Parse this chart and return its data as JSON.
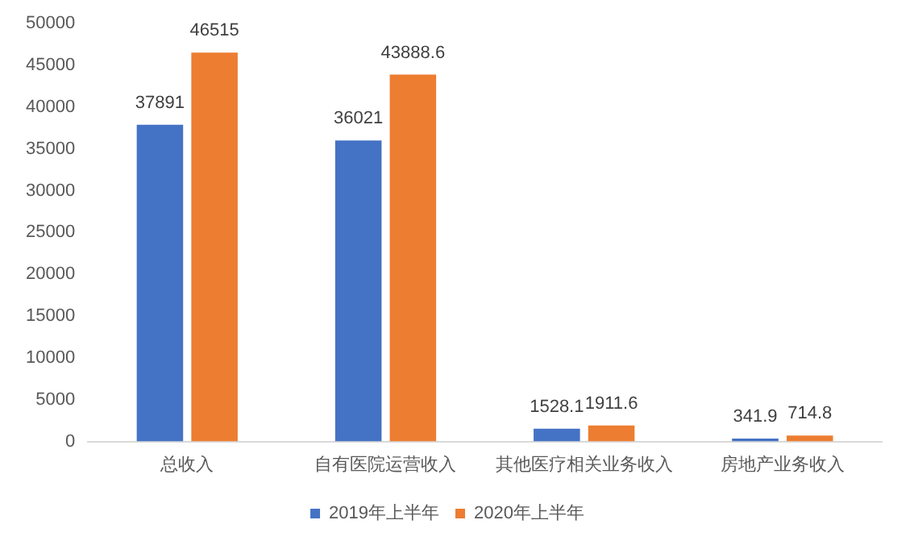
{
  "chart_data": {
    "type": "bar",
    "categories": [
      "总收入",
      "自有医院运营收入",
      "其他医疗相关业务收入",
      "房地产业务收入"
    ],
    "series": [
      {
        "name": "2019年上半年",
        "color": "#4472c4",
        "values": [
          37891,
          36021,
          1528.1,
          341.9
        ]
      },
      {
        "name": "2020年上半年",
        "color": "#ed7d31",
        "values": [
          46515,
          43888.6,
          1911.6,
          714.8
        ]
      }
    ],
    "ylim": [
      0,
      50000
    ],
    "yticks": [
      0,
      5000,
      10000,
      15000,
      20000,
      25000,
      30000,
      35000,
      40000,
      45000,
      50000
    ],
    "grid": false,
    "legend": "bottom",
    "data_labels": true
  }
}
